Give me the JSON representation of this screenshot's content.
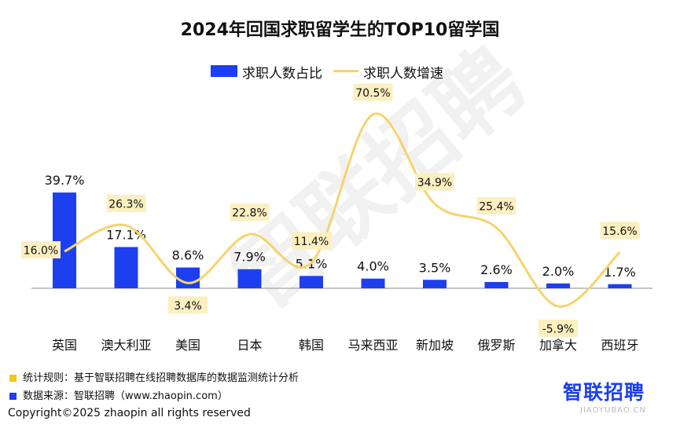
{
  "chart_data": {
    "type": "bar",
    "title": "2024年回国求职留学生的TOP10留学国",
    "categories": [
      "英国",
      "澳大利亚",
      "美国",
      "日本",
      "韩国",
      "马来西亚",
      "新加坡",
      "俄罗斯",
      "加拿大",
      "西班牙"
    ],
    "series": [
      {
        "name": "求职人数占比",
        "type": "bar",
        "values": [
          39.7,
          17.1,
          8.6,
          7.9,
          5.1,
          4.0,
          3.5,
          2.6,
          2.0,
          1.7
        ],
        "labels": [
          "39.7%",
          "17.1%",
          "8.6%",
          "7.9%",
          "5.1%",
          "4.0%",
          "3.5%",
          "2.6%",
          "2.0%",
          "1.7%"
        ],
        "color": "#1c3ff0"
      },
      {
        "name": "求职人数增速",
        "type": "line",
        "values": [
          16.0,
          26.3,
          3.4,
          22.8,
          11.4,
          70.5,
          34.9,
          25.4,
          -5.9,
          15.6
        ],
        "labels": [
          "16.0%",
          "26.3%",
          "3.4%",
          "22.8%",
          "11.4%",
          "70.5%",
          "34.9%",
          "25.4%",
          "-5.9%",
          "15.6%"
        ],
        "color": "#f6d36d"
      }
    ],
    "legend_position": "top-center",
    "grid": false
  },
  "notes": {
    "rule": "统计规则：基于智联招聘在线招聘数据库的数据监测统计分析",
    "source": "数据来源：智联招聘（www.zhaopin.com）",
    "rule_color": "#f5c518",
    "source_color": "#1c3ff0"
  },
  "copyright": "Copyright©2025 zhaopin all rights reserved",
  "logo": "智联招聘",
  "logo_sub": "JIAOYUBAO.CN",
  "watermark": "智联招聘"
}
